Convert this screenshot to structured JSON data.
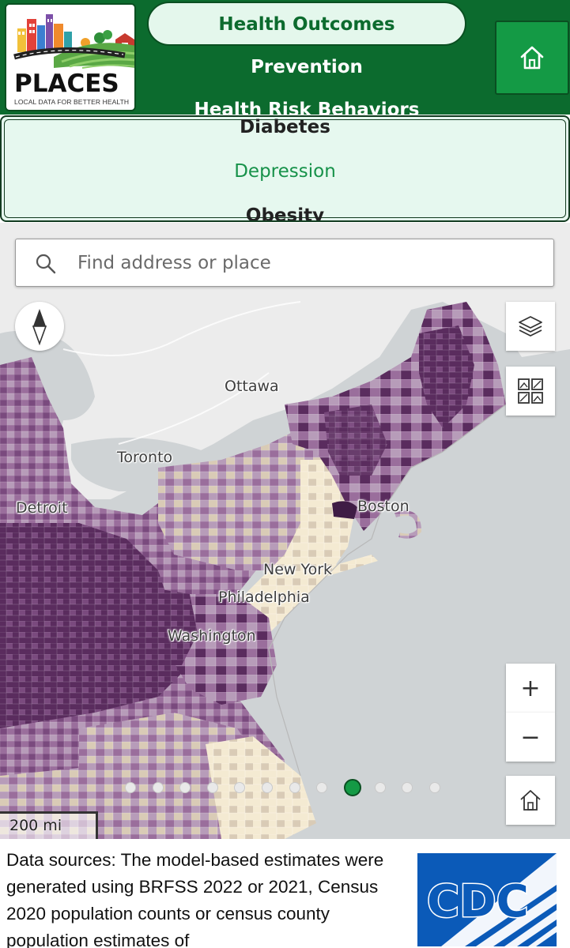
{
  "header": {
    "logo_word": "PLACES",
    "logo_tagline": "LOCAL DATA FOR BETTER HEALTH",
    "categories": [
      "Health Outcomes",
      "Prevention",
      "Health Risk Behaviors"
    ],
    "selected_category": "Health Outcomes",
    "home_icon": "home-icon"
  },
  "measures": {
    "items": [
      "Diabetes",
      "Depression",
      "Obesity"
    ],
    "selected": "Depression"
  },
  "map": {
    "search_placeholder": "Find address or place",
    "search_value": "",
    "compass_icon": "compass-icon",
    "layers_icon": "layers-icon",
    "basemap_icon": "basemap-gallery-icon",
    "zoom_in_label": "+",
    "zoom_out_label": "−",
    "default_extent_icon": "home-icon",
    "cities": [
      "Ottawa",
      "Toronto",
      "Detroit",
      "Boston",
      "New York",
      "Philadelphia",
      "Washington"
    ],
    "scalebar_label": "200 mi",
    "page_dots": {
      "count": 12,
      "active_index": 8
    },
    "colors": {
      "water": "#cfd3d5",
      "land": "#ececec",
      "choropleth": [
        "#f4ead2",
        "#d9cbb6",
        "#b79cb9",
        "#9a6e9c",
        "#7a4a7e",
        "#5a2c5e"
      ]
    }
  },
  "footer": {
    "sources_text": "Data sources: The model-based estimates were generated using BRFSS 2022 or 2021, Census 2020 population counts or census county population estimates of",
    "cdc_logo_text": "CDC"
  },
  "accent_colors": {
    "brand_green": "#0c6b2e",
    "selected_green": "#17924a"
  }
}
